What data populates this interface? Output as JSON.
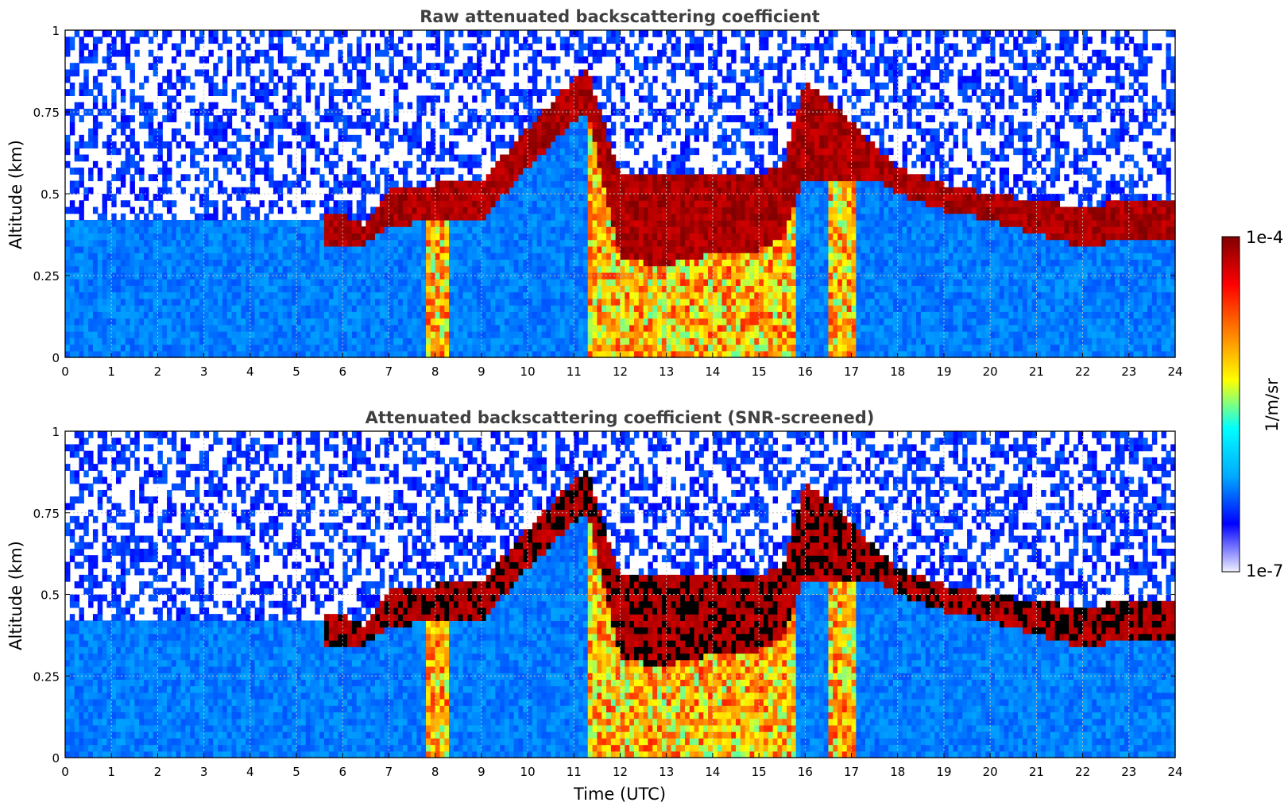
{
  "chart_data": [
    {
      "type": "heatmap",
      "title": "Raw attenuated backscattering coefficient",
      "xlabel": "",
      "ylabel": "Altitude (km)",
      "xlim": [
        0,
        24
      ],
      "ylim": [
        0,
        1
      ],
      "x_ticks": [
        "0",
        "1",
        "2",
        "3",
        "4",
        "5",
        "6",
        "7",
        "8",
        "9",
        "10",
        "11",
        "12",
        "13",
        "14",
        "15",
        "16",
        "17",
        "18",
        "19",
        "20",
        "21",
        "22",
        "23",
        "24"
      ],
      "y_ticks": [
        "0",
        "0.25",
        "0.5",
        "0.75",
        "1"
      ],
      "grid": true,
      "layer_profile": {
        "time_utc": [
          5.6,
          6.0,
          6.5,
          7.0,
          8.0,
          9.0,
          9.5,
          10.0,
          11.0,
          11.3,
          12.0,
          13.0,
          14.0,
          15.0,
          15.5,
          16.0,
          17.5,
          18.0,
          19.0,
          20.0,
          21.0,
          22.0,
          23.0,
          24.0
        ],
        "base_km": [
          0.33,
          0.34,
          0.35,
          0.4,
          0.42,
          0.42,
          0.5,
          0.58,
          0.72,
          0.75,
          0.3,
          0.28,
          0.32,
          0.33,
          0.36,
          0.55,
          0.55,
          0.5,
          0.45,
          0.42,
          0.38,
          0.34,
          0.36,
          0.35
        ],
        "top_km": [
          0.43,
          0.44,
          0.4,
          0.52,
          0.53,
          0.53,
          0.62,
          0.7,
          0.85,
          0.88,
          0.55,
          0.55,
          0.56,
          0.56,
          0.58,
          0.85,
          0.65,
          0.58,
          0.53,
          0.5,
          0.48,
          0.46,
          0.48,
          0.47
        ]
      }
    },
    {
      "type": "heatmap",
      "title": "Attenuated backscattering coefficient (SNR-screened)",
      "xlabel": "Time (UTC)",
      "ylabel": "Altitude (km)",
      "xlim": [
        0,
        24
      ],
      "ylim": [
        0,
        1
      ],
      "x_ticks": [
        "0",
        "1",
        "2",
        "3",
        "4",
        "5",
        "6",
        "7",
        "8",
        "9",
        "10",
        "11",
        "12",
        "13",
        "14",
        "15",
        "16",
        "17",
        "18",
        "19",
        "20",
        "21",
        "22",
        "23",
        "24"
      ],
      "y_ticks": [
        "0",
        "0.25",
        "0.5",
        "0.75",
        "1"
      ],
      "grid": true,
      "layer_profile": {
        "time_utc": [
          5.6,
          6.0,
          6.5,
          7.0,
          8.0,
          9.0,
          9.5,
          10.0,
          11.0,
          11.3,
          12.0,
          13.0,
          14.0,
          15.0,
          15.5,
          16.0,
          17.5,
          18.0,
          19.0,
          20.0,
          21.0,
          22.0,
          23.0,
          24.0
        ],
        "base_km": [
          0.33,
          0.34,
          0.35,
          0.4,
          0.42,
          0.42,
          0.5,
          0.58,
          0.72,
          0.75,
          0.3,
          0.28,
          0.32,
          0.33,
          0.36,
          0.55,
          0.55,
          0.5,
          0.45,
          0.42,
          0.38,
          0.34,
          0.36,
          0.35
        ],
        "top_km": [
          0.43,
          0.44,
          0.4,
          0.52,
          0.53,
          0.53,
          0.62,
          0.7,
          0.85,
          0.88,
          0.55,
          0.55,
          0.56,
          0.56,
          0.58,
          0.85,
          0.65,
          0.58,
          0.53,
          0.5,
          0.48,
          0.46,
          0.48,
          0.47
        ]
      }
    }
  ],
  "colorbar": {
    "label": "1/m/sr",
    "max_label": "1e-4",
    "min_label": "1e-7",
    "scale": "log",
    "colormap": [
      "#f0f0ff",
      "#0000ff",
      "#00aaff",
      "#00ffff",
      "#ffff00",
      "#ff8000",
      "#ff0000",
      "#800000"
    ]
  }
}
